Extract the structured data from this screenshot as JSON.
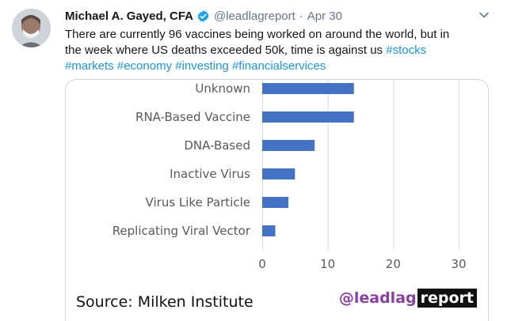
{
  "tweet": {
    "name": "Michael A. Gayed, CFA",
    "handle": "@leadlagreport",
    "separator": "·",
    "date": "Apr 30",
    "text_line1": "There are currently 96 vaccines being worked on around the world, but in",
    "text_line2_prefix": "the week where US deaths exceeded 50k, time is against us ",
    "hashtags": [
      "#stocks",
      "#markets",
      "#economy",
      "#investing",
      "#financialservices"
    ]
  },
  "card": {
    "source": "Source: Milken Institute",
    "brand_at": "@leadlag",
    "brand_box": "report"
  },
  "colors": {
    "bar": "#4472c4",
    "hashtag": "#1b95e0",
    "brand_purple": "#8b3fa3",
    "verified": "#1da1f2"
  },
  "icons": {
    "verified": "verified-badge-icon",
    "caret": "chevron-down-icon"
  },
  "chart_data": {
    "type": "bar",
    "orientation": "horizontal",
    "categories": [
      "Unknown",
      "RNA-Based Vaccine",
      "DNA-Based",
      "Inactive Virus",
      "Virus Like Particle",
      "Replicating Viral Vector"
    ],
    "values": [
      14,
      14,
      8,
      5,
      4,
      2
    ],
    "xlim": [
      0,
      30
    ],
    "xticks": [
      "0",
      "10",
      "20",
      "30"
    ],
    "grid": true
  }
}
